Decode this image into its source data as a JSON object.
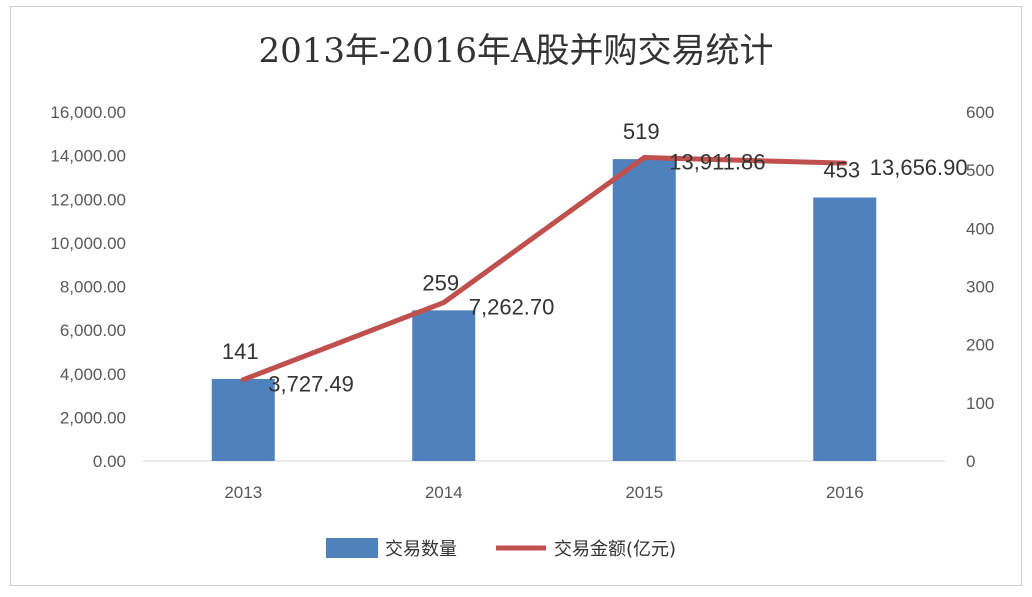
{
  "chart_data": {
    "type": "bar",
    "title": "2013年-2016年A股并购交易统计",
    "categories": [
      "2013",
      "2014",
      "2015",
      "2016"
    ],
    "series": [
      {
        "name": "交易数量",
        "kind": "bar",
        "axis": "right",
        "color": "#4F81BD",
        "values": [
          141,
          259,
          519,
          453
        ],
        "labels": [
          "141",
          "259",
          "519",
          "453"
        ]
      },
      {
        "name": "交易金额(亿元)",
        "kind": "line",
        "axis": "left",
        "color": "#C0504D",
        "values": [
          3727.49,
          7262.7,
          13911.86,
          13656.9
        ],
        "labels": [
          "3,727.49",
          "7,262.70",
          "13,911.86",
          "13,656.90"
        ]
      }
    ],
    "y_left": {
      "min": 0,
      "max": 16000,
      "step": 2000,
      "ticks": [
        "0.00",
        "2,000.00",
        "4,000.00",
        "6,000.00",
        "8,000.00",
        "10,000.00",
        "12,000.00",
        "14,000.00",
        "16,000.00"
      ]
    },
    "y_right": {
      "min": 0,
      "max": 600,
      "step": 100,
      "ticks": [
        "0",
        "100",
        "200",
        "300",
        "400",
        "500",
        "600"
      ]
    },
    "grid": false,
    "legend": "bottom"
  }
}
